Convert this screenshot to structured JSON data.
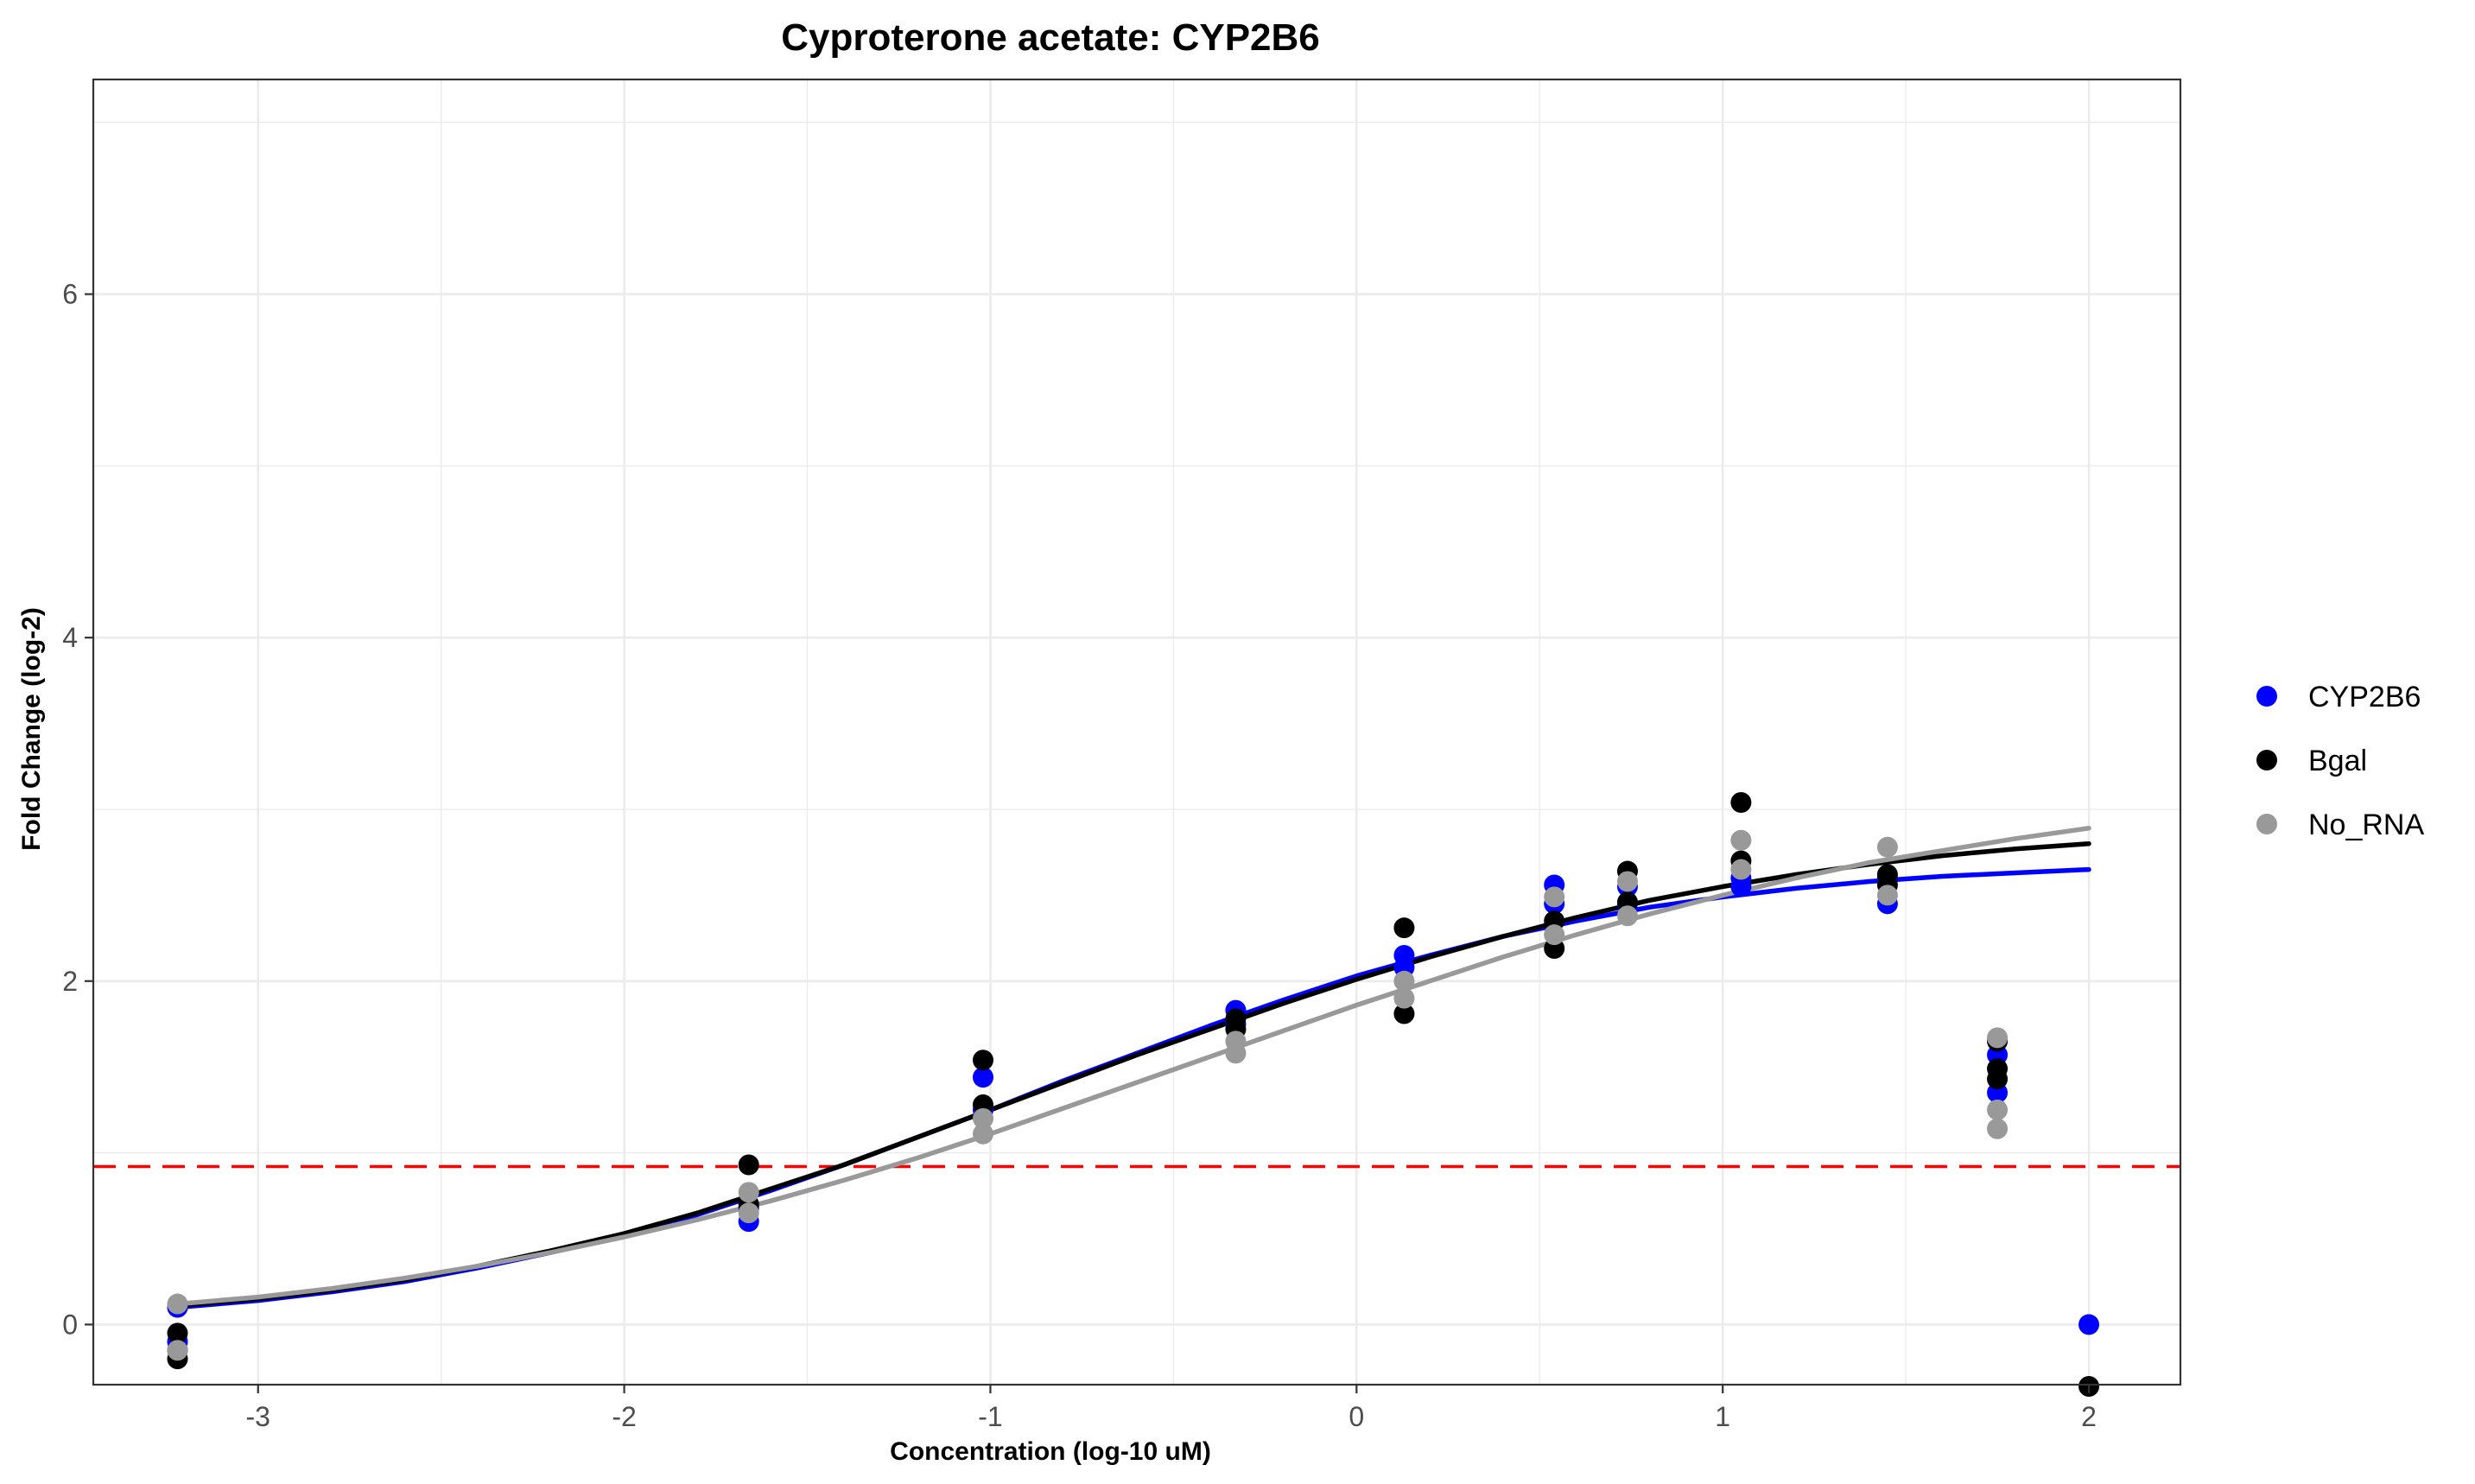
{
  "chart_data": {
    "type": "scatter",
    "title": "Cyproterone acetate: CYP2B6",
    "xlabel": "Concentration (log-10 uM)",
    "ylabel": "Fold Change (log-2)",
    "xlim": [
      -3.45,
      2.25
    ],
    "ylim": [
      -0.35,
      7.25
    ],
    "x_ticks": [
      -3,
      -2,
      -1,
      0,
      1,
      2
    ],
    "y_ticks": [
      0,
      2,
      4,
      6
    ],
    "grid": true,
    "legend_position": "right",
    "threshold": {
      "y": 0.92,
      "color": "#ff0000",
      "style": "dashed"
    },
    "series": [
      {
        "name": "CYP2B6",
        "color": "#0000ff",
        "points": [
          [
            -3.22,
            0.1
          ],
          [
            -3.22,
            -0.1
          ],
          [
            -1.66,
            0.6
          ],
          [
            -1.66,
            0.68
          ],
          [
            -1.02,
            1.44
          ],
          [
            -1.02,
            1.25
          ],
          [
            -0.33,
            1.83
          ],
          [
            -0.33,
            1.75
          ],
          [
            0.13,
            2.15
          ],
          [
            0.13,
            2.08
          ],
          [
            0.54,
            2.56
          ],
          [
            0.54,
            2.45
          ],
          [
            0.74,
            2.55
          ],
          [
            0.74,
            2.45
          ],
          [
            1.05,
            2.55
          ],
          [
            1.05,
            2.6
          ],
          [
            1.45,
            2.45
          ],
          [
            1.45,
            2.6
          ],
          [
            1.75,
            1.57
          ],
          [
            1.75,
            1.35
          ],
          [
            2.0,
            0.0
          ]
        ],
        "fit": [
          [
            -3.22,
            0.1
          ],
          [
            -3.0,
            0.14
          ],
          [
            -2.8,
            0.19
          ],
          [
            -2.6,
            0.25
          ],
          [
            -2.4,
            0.33
          ],
          [
            -2.2,
            0.42
          ],
          [
            -2.0,
            0.52
          ],
          [
            -1.8,
            0.64
          ],
          [
            -1.6,
            0.78
          ],
          [
            -1.4,
            0.93
          ],
          [
            -1.2,
            1.09
          ],
          [
            -1.0,
            1.25
          ],
          [
            -0.8,
            1.42
          ],
          [
            -0.6,
            1.58
          ],
          [
            -0.4,
            1.74
          ],
          [
            -0.2,
            1.89
          ],
          [
            0.0,
            2.03
          ],
          [
            0.2,
            2.15
          ],
          [
            0.4,
            2.26
          ],
          [
            0.6,
            2.35
          ],
          [
            0.8,
            2.43
          ],
          [
            1.0,
            2.49
          ],
          [
            1.2,
            2.54
          ],
          [
            1.4,
            2.58
          ],
          [
            1.6,
            2.61
          ],
          [
            1.8,
            2.63
          ],
          [
            2.0,
            2.65
          ]
        ]
      },
      {
        "name": "Bgal",
        "color": "#000000",
        "points": [
          [
            -3.22,
            -0.05
          ],
          [
            -3.22,
            -0.2
          ],
          [
            -3.22,
            -0.15
          ],
          [
            -1.66,
            0.93
          ],
          [
            -1.66,
            0.7
          ],
          [
            -1.02,
            1.54
          ],
          [
            -1.02,
            1.28
          ],
          [
            -0.33,
            1.78
          ],
          [
            -0.33,
            1.72
          ],
          [
            0.13,
            2.31
          ],
          [
            0.13,
            1.81
          ],
          [
            0.54,
            2.19
          ],
          [
            0.54,
            2.35
          ],
          [
            0.74,
            2.64
          ],
          [
            0.74,
            2.46
          ],
          [
            1.05,
            3.04
          ],
          [
            1.05,
            2.7
          ],
          [
            1.45,
            2.62
          ],
          [
            1.45,
            2.56
          ],
          [
            1.75,
            1.49
          ],
          [
            1.75,
            1.43
          ],
          [
            1.75,
            1.65
          ],
          [
            2.0,
            -0.36
          ]
        ],
        "fit": [
          [
            -3.22,
            0.11
          ],
          [
            -3.0,
            0.15
          ],
          [
            -2.8,
            0.2
          ],
          [
            -2.6,
            0.26
          ],
          [
            -2.4,
            0.34
          ],
          [
            -2.2,
            0.43
          ],
          [
            -2.0,
            0.53
          ],
          [
            -1.8,
            0.65
          ],
          [
            -1.6,
            0.79
          ],
          [
            -1.4,
            0.93
          ],
          [
            -1.2,
            1.09
          ],
          [
            -1.0,
            1.25
          ],
          [
            -0.8,
            1.41
          ],
          [
            -0.6,
            1.57
          ],
          [
            -0.4,
            1.72
          ],
          [
            -0.2,
            1.87
          ],
          [
            0.0,
            2.01
          ],
          [
            0.2,
            2.14
          ],
          [
            0.4,
            2.26
          ],
          [
            0.6,
            2.37
          ],
          [
            0.8,
            2.47
          ],
          [
            1.0,
            2.55
          ],
          [
            1.2,
            2.62
          ],
          [
            1.4,
            2.68
          ],
          [
            1.6,
            2.73
          ],
          [
            1.8,
            2.77
          ],
          [
            2.0,
            2.8
          ]
        ]
      },
      {
        "name": "No_RNA",
        "color": "#999999",
        "points": [
          [
            -3.22,
            0.12
          ],
          [
            -3.22,
            -0.15
          ],
          [
            -1.66,
            0.77
          ],
          [
            -1.66,
            0.65
          ],
          [
            -1.02,
            1.11
          ],
          [
            -1.02,
            1.2
          ],
          [
            -0.33,
            1.58
          ],
          [
            -0.33,
            1.65
          ],
          [
            0.13,
            1.9
          ],
          [
            0.13,
            2.0
          ],
          [
            0.54,
            2.49
          ],
          [
            0.54,
            2.27
          ],
          [
            0.74,
            2.38
          ],
          [
            0.74,
            2.58
          ],
          [
            1.05,
            2.82
          ],
          [
            1.05,
            2.65
          ],
          [
            1.45,
            2.78
          ],
          [
            1.45,
            2.5
          ],
          [
            1.75,
            1.14
          ],
          [
            1.75,
            1.25
          ],
          [
            1.75,
            1.67
          ]
        ],
        "fit": [
          [
            -3.22,
            0.12
          ],
          [
            -3.0,
            0.16
          ],
          [
            -2.8,
            0.21
          ],
          [
            -2.6,
            0.27
          ],
          [
            -2.4,
            0.34
          ],
          [
            -2.2,
            0.42
          ],
          [
            -2.0,
            0.51
          ],
          [
            -1.8,
            0.61
          ],
          [
            -1.6,
            0.72
          ],
          [
            -1.4,
            0.84
          ],
          [
            -1.2,
            0.97
          ],
          [
            -1.0,
            1.11
          ],
          [
            -0.8,
            1.26
          ],
          [
            -0.6,
            1.41
          ],
          [
            -0.4,
            1.56
          ],
          [
            -0.2,
            1.71
          ],
          [
            0.0,
            1.86
          ],
          [
            0.2,
            2.0
          ],
          [
            0.4,
            2.14
          ],
          [
            0.6,
            2.27
          ],
          [
            0.8,
            2.39
          ],
          [
            1.0,
            2.5
          ],
          [
            1.2,
            2.6
          ],
          [
            1.4,
            2.69
          ],
          [
            1.6,
            2.76
          ],
          [
            1.8,
            2.83
          ],
          [
            2.0,
            2.89
          ]
        ]
      }
    ]
  }
}
